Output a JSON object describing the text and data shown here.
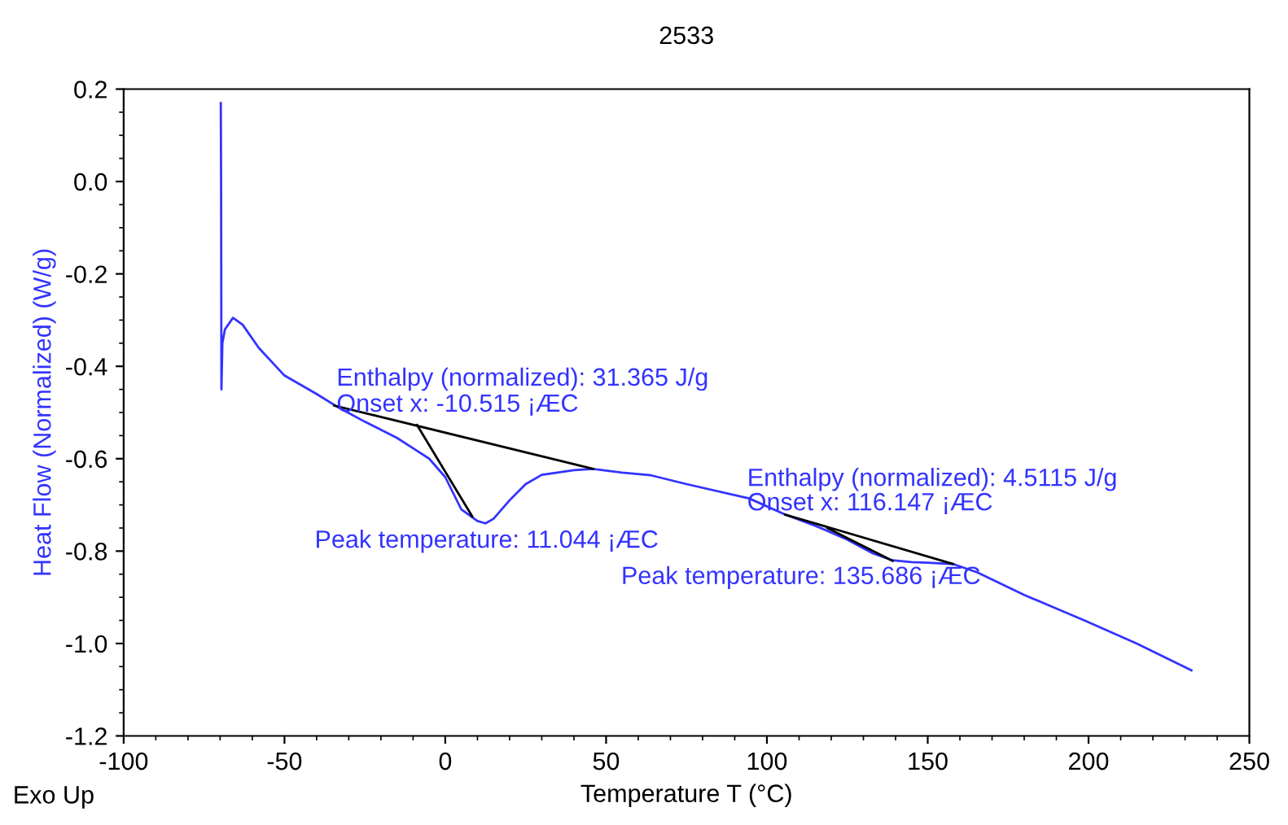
{
  "chart_data": {
    "type": "line",
    "title": "2533",
    "xlabel": "Temperature T (°C)",
    "ylabel": "Heat Flow (Normalized) (W/g)",
    "xlim": [
      -100,
      250
    ],
    "xticks": [
      -100,
      -50,
      0,
      50,
      100,
      150,
      200,
      250
    ],
    "ylim": [
      -1.2,
      0.2
    ],
    "yticks": [
      {
        "value": 0.2,
        "label": "0.2"
      },
      {
        "value": 0.0,
        "label": "0.0"
      },
      {
        "value": -0.2,
        "label": "-0.2"
      },
      {
        "value": -0.4,
        "label": "-0.4"
      },
      {
        "value": -0.6,
        "label": "-0.6"
      },
      {
        "value": -0.8,
        "label": "-0.8"
      },
      {
        "value": -1.0,
        "label": "-1.0"
      },
      {
        "value": -1.2,
        "label": "-1.2"
      }
    ],
    "grid": false,
    "legend": false,
    "series": [
      {
        "color": "#3333ff",
        "x": [
          -69.8,
          -69.7,
          -69.6,
          -69.3,
          -68.5,
          -66,
          -63,
          -58,
          -50,
          -40,
          -33,
          -25,
          -15,
          -5,
          0,
          5,
          10,
          12.5,
          15,
          20,
          25,
          30,
          40,
          46,
          55,
          64,
          75,
          94.5,
          105.7,
          115,
          125,
          133,
          139,
          145,
          150,
          157.9,
          165.4,
          180,
          199.4,
          215,
          232
        ],
        "values": [
          0.17,
          0.0,
          -0.45,
          -0.35,
          -0.32,
          -0.295,
          -0.31,
          -0.36,
          -0.42,
          -0.46,
          -0.49,
          -0.52,
          -0.555,
          -0.6,
          -0.64,
          -0.71,
          -0.735,
          -0.74,
          -0.73,
          -0.69,
          -0.655,
          -0.635,
          -0.625,
          -0.622,
          -0.63,
          -0.636,
          -0.655,
          -0.686,
          -0.721,
          -0.745,
          -0.775,
          -0.805,
          -0.82,
          -0.824,
          -0.825,
          -0.828,
          -0.846,
          -0.895,
          -0.952,
          -1.0,
          -1.058
        ]
      },
      {
        "color": "#000000",
        "x": [
          -34.5,
          46
        ],
        "values": [
          -0.485,
          -0.622
        ]
      },
      {
        "color": "#000000",
        "x": [
          -8.8,
          8.4
        ],
        "values": [
          -0.527,
          -0.725
        ]
      },
      {
        "color": "#000000",
        "x": [
          105.7,
          157.9
        ],
        "values": [
          -0.721,
          -0.828
        ]
      },
      {
        "color": "#000000",
        "x": [
          118.8,
          139.1
        ],
        "values": [
          -0.75,
          -0.821
        ]
      }
    ],
    "annotations": [
      {
        "text": "Enthalpy (normalized): 31.365 J/g",
        "x": -10.515,
        "y": -0.53
      },
      {
        "text": "Onset x: -10.515 ¡ÆC",
        "x": -10.515,
        "y": -0.53
      },
      {
        "text": "Peak temperature: 11.044 ¡ÆC",
        "x": 11.044,
        "y": -0.74
      },
      {
        "text": "Enthalpy (normalized): 4.5115 J/g",
        "x": 116.147,
        "y": -0.74
      },
      {
        "text": "Onset x: 116.147 ¡ÆC",
        "x": 116.147,
        "y": -0.74
      },
      {
        "text": "Peak temperature: 135.686 ¡ÆC",
        "x": 135.686,
        "y": -0.815
      },
      "Exo Up"
    ]
  }
}
